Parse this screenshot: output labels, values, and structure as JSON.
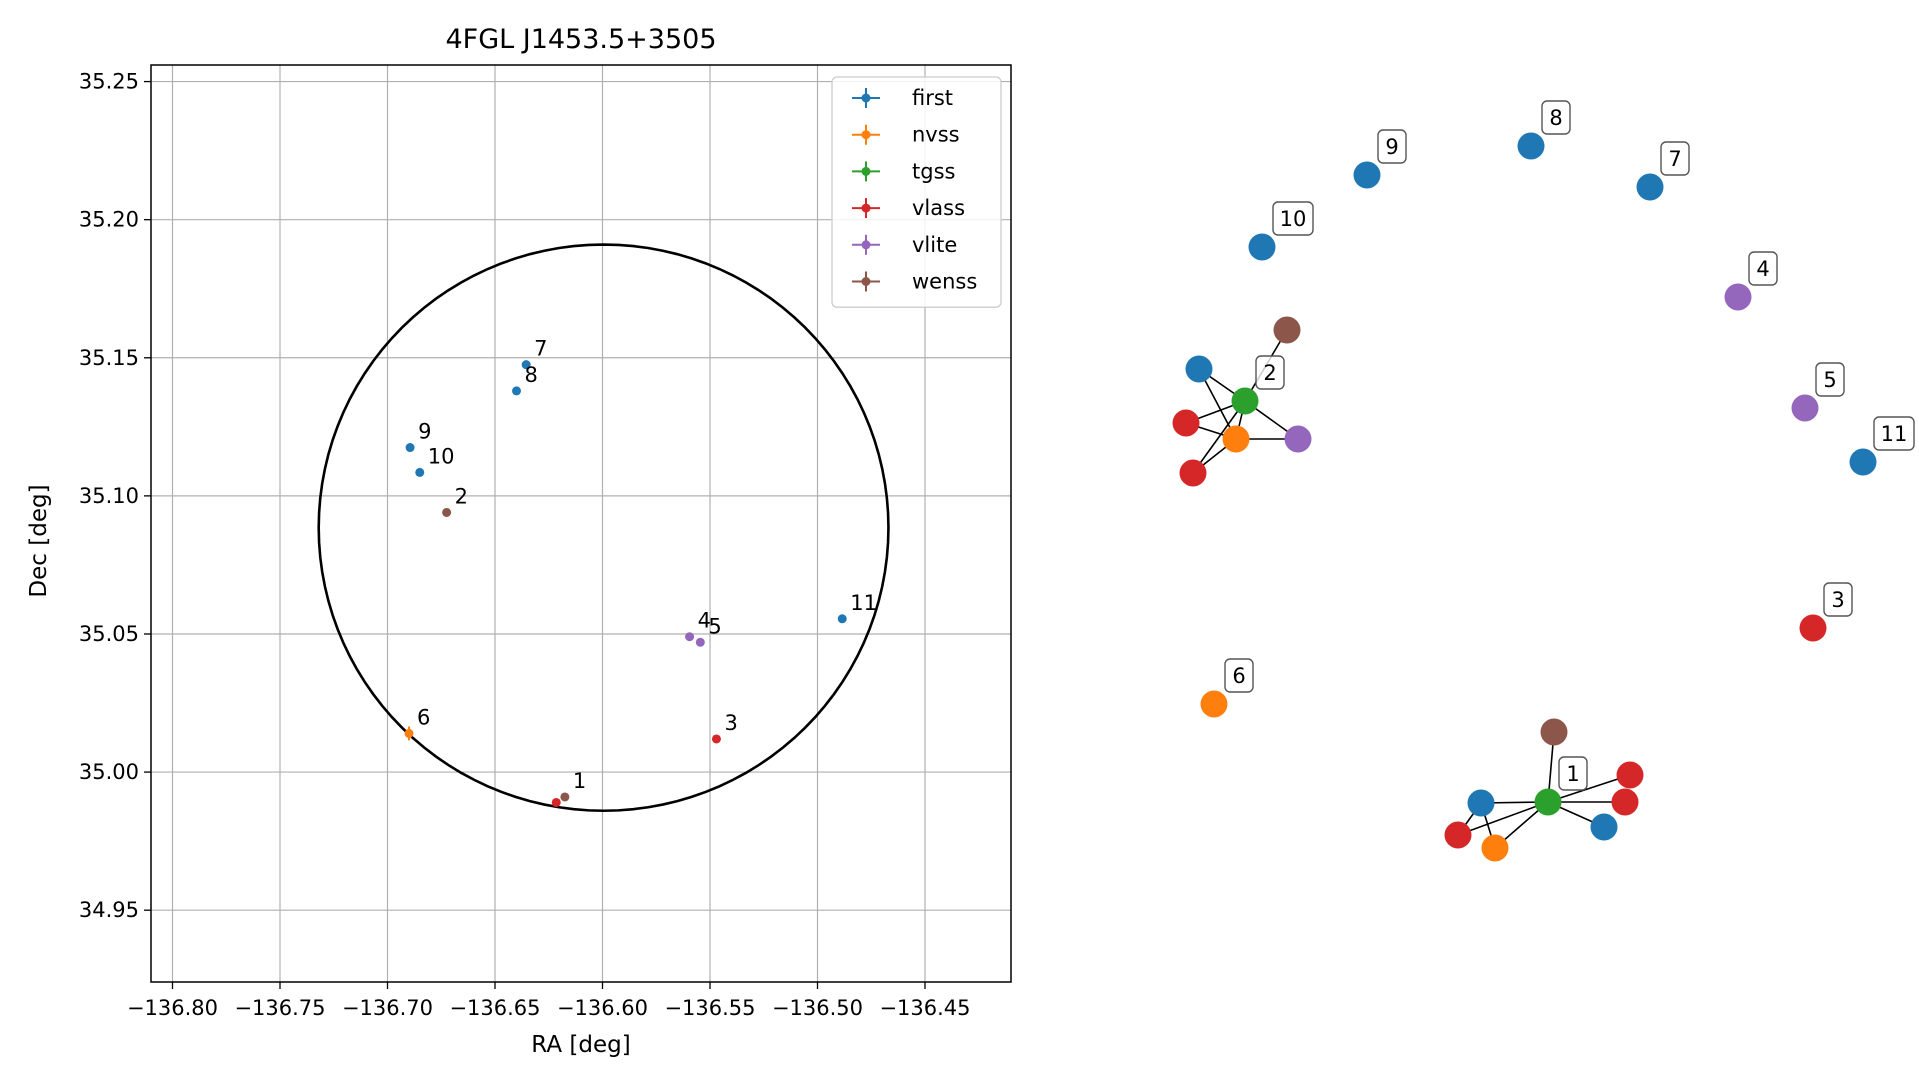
{
  "chart_data": [
    {
      "type": "scatter",
      "title": "4FGL J1453.5+3505",
      "xlabel": "RA [deg]",
      "ylabel": "Dec [deg]",
      "xlim": [
        -136.81,
        -136.41
      ],
      "ylim": [
        34.924,
        35.256
      ],
      "xticks": [
        -136.8,
        -136.75,
        -136.7,
        -136.65,
        -136.6,
        -136.55,
        -136.5,
        -136.45
      ],
      "xtick_labels": [
        "−136.80",
        "−136.75",
        "−136.70",
        "−136.65",
        "−136.60",
        "−136.55",
        "−136.50",
        "−136.45"
      ],
      "yticks": [
        34.95,
        35.0,
        35.05,
        35.1,
        35.15,
        35.2,
        35.25
      ],
      "ytick_labels": [
        "34.95",
        "35.00",
        "35.05",
        "35.10",
        "35.15",
        "35.20",
        "35.25"
      ],
      "grid": true,
      "legend_position": "top-right",
      "legend": [
        {
          "name": "first",
          "color": "#1f77b4"
        },
        {
          "name": "nvss",
          "color": "#ff7f0e"
        },
        {
          "name": "tgss",
          "color": "#2ca02c"
        },
        {
          "name": "vlass",
          "color": "#d62728"
        },
        {
          "name": "vlite",
          "color": "#9467bd"
        },
        {
          "name": "wenss",
          "color": "#8c564b"
        }
      ],
      "circle": {
        "center": [
          -136.5995,
          35.0885
        ],
        "ra_radius": 0.1325,
        "dec_radius": 0.1025
      },
      "points": [
        {
          "survey": "first",
          "x": -136.6355,
          "y": 35.1475,
          "err": 0
        },
        {
          "survey": "first",
          "x": -136.64,
          "y": 35.138,
          "err": 0
        },
        {
          "survey": "first",
          "x": -136.6895,
          "y": 35.1175,
          "err": 0
        },
        {
          "survey": "first",
          "x": -136.685,
          "y": 35.1085,
          "err": 0
        },
        {
          "survey": "first",
          "x": -136.4885,
          "y": 35.0555,
          "err": 0
        },
        {
          "survey": "wenss",
          "x": -136.6725,
          "y": 35.094,
          "err": 0.0015
        },
        {
          "survey": "vlite",
          "x": -136.5595,
          "y": 35.049,
          "err": 0
        },
        {
          "survey": "vlite",
          "x": -136.5545,
          "y": 35.047,
          "err": 0
        },
        {
          "survey": "vlass",
          "x": -136.547,
          "y": 35.012,
          "err": 0
        },
        {
          "survey": "nvss",
          "x": -136.69,
          "y": 35.014,
          "err": 0.0025
        },
        {
          "survey": "vlass",
          "x": -136.6215,
          "y": 34.989,
          "err": 0
        },
        {
          "survey": "wenss",
          "x": -136.6175,
          "y": 34.991,
          "err": 0.001
        }
      ],
      "labels": [
        {
          "text": "7",
          "x": -136.6355,
          "y": 35.1475
        },
        {
          "text": "8",
          "x": -136.64,
          "y": 35.138
        },
        {
          "text": "9",
          "x": -136.6895,
          "y": 35.1175
        },
        {
          "text": "10",
          "x": -136.685,
          "y": 35.1085
        },
        {
          "text": "2",
          "x": -136.6725,
          "y": 35.094
        },
        {
          "text": "11",
          "x": -136.4885,
          "y": 35.0555
        },
        {
          "text": "4",
          "x": -136.5595,
          "y": 35.049
        },
        {
          "text": "5",
          "x": -136.5545,
          "y": 35.047
        },
        {
          "text": "3",
          "x": -136.547,
          "y": 35.012
        },
        {
          "text": "6",
          "x": -136.69,
          "y": 35.014
        },
        {
          "text": "1",
          "x": -136.6175,
          "y": 34.991
        }
      ]
    },
    {
      "type": "network",
      "nodes": [
        {
          "id": "n1",
          "survey": "tgss",
          "label": "1"
        },
        {
          "id": "n1a",
          "survey": "wenss"
        },
        {
          "id": "n1b",
          "survey": "first"
        },
        {
          "id": "n1c",
          "survey": "first"
        },
        {
          "id": "n1d",
          "survey": "vlass"
        },
        {
          "id": "n1e",
          "survey": "vlass"
        },
        {
          "id": "n1f",
          "survey": "vlass"
        },
        {
          "id": "n1g",
          "survey": "nvss"
        },
        {
          "id": "n2",
          "survey": "tgss",
          "label": "2"
        },
        {
          "id": "n2a",
          "survey": "wenss"
        },
        {
          "id": "n2b",
          "survey": "first"
        },
        {
          "id": "n2c",
          "survey": "vlass"
        },
        {
          "id": "n2d",
          "survey": "vlass"
        },
        {
          "id": "n2e",
          "survey": "nvss"
        },
        {
          "id": "n2f",
          "survey": "vlite"
        },
        {
          "id": "n3",
          "survey": "vlass",
          "label": "3"
        },
        {
          "id": "n4",
          "survey": "vlite",
          "label": "4"
        },
        {
          "id": "n5",
          "survey": "vlite",
          "label": "5"
        },
        {
          "id": "n6",
          "survey": "nvss",
          "label": "6"
        },
        {
          "id": "n7",
          "survey": "first",
          "label": "7"
        },
        {
          "id": "n8",
          "survey": "first",
          "label": "8"
        },
        {
          "id": "n9",
          "survey": "first",
          "label": "9"
        },
        {
          "id": "n10",
          "survey": "first",
          "label": "10"
        },
        {
          "id": "n11",
          "survey": "first",
          "label": "11"
        }
      ],
      "edges": [
        [
          "n1",
          "n1a"
        ],
        [
          "n1",
          "n1b"
        ],
        [
          "n1",
          "n1c"
        ],
        [
          "n1",
          "n1d"
        ],
        [
          "n1",
          "n1e"
        ],
        [
          "n1",
          "n1f"
        ],
        [
          "n1",
          "n1g"
        ],
        [
          "n1b",
          "n1f"
        ],
        [
          "n1b",
          "n1g"
        ],
        [
          "n2",
          "n2a"
        ],
        [
          "n2",
          "n2b"
        ],
        [
          "n2",
          "n2c"
        ],
        [
          "n2",
          "n2d"
        ],
        [
          "n2",
          "n2e"
        ],
        [
          "n2",
          "n2f"
        ],
        [
          "n2b",
          "n2e"
        ],
        [
          "n2c",
          "n2e"
        ],
        [
          "n2d",
          "n2e"
        ],
        [
          "n2e",
          "n2f"
        ]
      ]
    }
  ]
}
